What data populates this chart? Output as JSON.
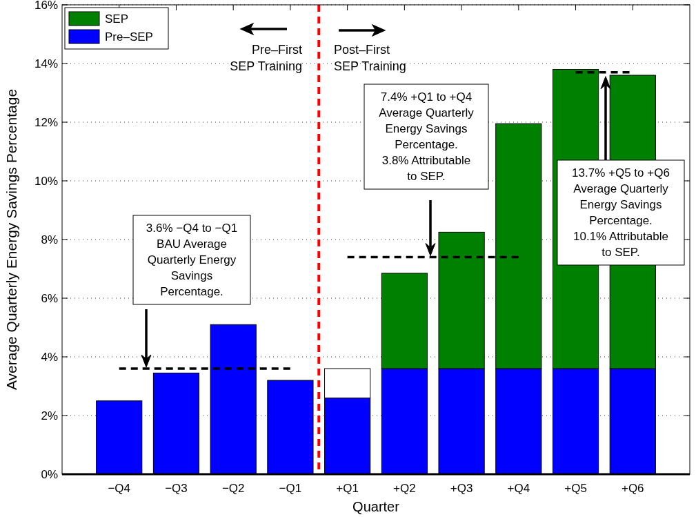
{
  "chart_data": {
    "type": "bar",
    "xlabel": "Quarter",
    "ylabel": "Average Quarterly Energy Savings Percentage",
    "categories": [
      "−Q4",
      "−Q3",
      "−Q2",
      "−Q1",
      "+Q1",
      "+Q2",
      "+Q3",
      "+Q4",
      "+Q5",
      "+Q6"
    ],
    "stacked": true,
    "series": [
      {
        "name": "Pre–SEP",
        "color": "#0000ff",
        "values": [
          2.5,
          3.45,
          5.1,
          3.2,
          2.6,
          3.6,
          3.6,
          3.6,
          3.6,
          3.6
        ]
      },
      {
        "color": "#ffffff",
        "values": [
          null,
          null,
          null,
          null,
          1.0,
          null,
          null,
          null,
          null,
          null
        ]
      },
      {
        "name": "SEP",
        "color": "#008000",
        "values": [
          null,
          null,
          null,
          null,
          null,
          3.25,
          4.65,
          8.35,
          10.2,
          10.0
        ]
      },
      {
        "type": "line",
        "color": "#000000",
        "line_style": "dashed",
        "marker": "none",
        "values": [
          3.6,
          3.6,
          3.6,
          3.6,
          null,
          null,
          null,
          null,
          null,
          null
        ]
      },
      {
        "type": "line",
        "color": "#000000",
        "line_style": "dashed",
        "marker": "none",
        "values": [
          null,
          null,
          null,
          null,
          7.4,
          7.4,
          7.4,
          7.4,
          null,
          null
        ]
      },
      {
        "type": "line",
        "color": "#000000",
        "line_style": "dashed",
        "marker": "none",
        "values": [
          null,
          null,
          null,
          null,
          null,
          null,
          null,
          null,
          13.7,
          13.7
        ]
      }
    ],
    "ref_lines": [
      {
        "axis": "x",
        "value": "+Q1",
        "color": "#ff0000",
        "line_style": "dashed"
      }
    ],
    "ylim": [
      0,
      16
    ],
    "yticks": [
      {
        "value": 0,
        "label": "0%"
      },
      {
        "value": 2,
        "label": "2%"
      },
      {
        "value": 4,
        "label": "4%"
      },
      {
        "value": 6,
        "label": "6%"
      },
      {
        "value": 8,
        "label": "8%"
      },
      {
        "value": 10,
        "label": "10%"
      },
      {
        "value": 12,
        "label": "12%"
      },
      {
        "value": 14,
        "label": "14%"
      },
      {
        "value": 16,
        "label": "16%"
      }
    ],
    "grid": "y",
    "legend": "top left",
    "annotations": [
      "Pre–First\nSEP Training",
      "Post–First\nSEP Training",
      "3.6% −Q4 to −Q1\nBAU Average\nQuarterly Energy\nSavings\nPercentage.",
      "7.4% +Q1 to +Q4\nAverage Quarterly\nEnergy Savings\nPercentage.\n3.8% Attributable\nto SEP.",
      "13.7% +Q5 to +Q6\nAverage Quarterly\nEnergy Savings\nPercentage.\n10.1% Attributable\nto SEP."
    ]
  }
}
